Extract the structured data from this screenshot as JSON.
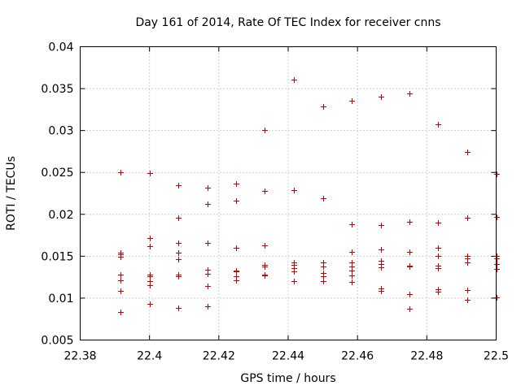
{
  "chart_data": {
    "type": "scatter",
    "title": "Day 161 of 2014, Rate Of TEC Index for receiver cnns",
    "xlabel": "GPS time / hours",
    "ylabel": "ROTI / TECUs",
    "xlim": [
      22.38,
      22.5
    ],
    "ylim": [
      0.005,
      0.04
    ],
    "grid": true,
    "marker": "plus",
    "color": "#cc0000",
    "x_ticks": [
      "22.38",
      "22.4",
      "22.42",
      "22.44",
      "22.46",
      "22.48",
      "22.5"
    ],
    "y_ticks": [
      "0.005",
      "0.01",
      "0.015",
      "0.02",
      "0.025",
      "0.03",
      "0.035",
      "0.04"
    ],
    "series": [
      {
        "name": "ROTI",
        "points": [
          [
            22.3917,
            0.025
          ],
          [
            22.3917,
            0.0154
          ],
          [
            22.3917,
            0.0152
          ],
          [
            22.3917,
            0.0149
          ],
          [
            22.3917,
            0.0128
          ],
          [
            22.3917,
            0.0121
          ],
          [
            22.3917,
            0.0109
          ],
          [
            22.3917,
            0.0083
          ],
          [
            22.4,
            0.0249
          ],
          [
            22.4,
            0.0172
          ],
          [
            22.4,
            0.0162
          ],
          [
            22.4,
            0.0128
          ],
          [
            22.4,
            0.0126
          ],
          [
            22.4,
            0.012
          ],
          [
            22.4,
            0.0115
          ],
          [
            22.4,
            0.0093
          ],
          [
            22.4083,
            0.0235
          ],
          [
            22.4083,
            0.0196
          ],
          [
            22.4083,
            0.0166
          ],
          [
            22.4083,
            0.0154
          ],
          [
            22.4083,
            0.0146
          ],
          [
            22.4083,
            0.0128
          ],
          [
            22.4083,
            0.0126
          ],
          [
            22.4083,
            0.0088
          ],
          [
            22.4167,
            0.0232
          ],
          [
            22.4167,
            0.0212
          ],
          [
            22.4167,
            0.0166
          ],
          [
            22.4167,
            0.0134
          ],
          [
            22.4167,
            0.0129
          ],
          [
            22.4167,
            0.0114
          ],
          [
            22.4167,
            0.009
          ],
          [
            22.425,
            0.0237
          ],
          [
            22.425,
            0.0216
          ],
          [
            22.425,
            0.016
          ],
          [
            22.425,
            0.0133
          ],
          [
            22.425,
            0.0132
          ],
          [
            22.425,
            0.0126
          ],
          [
            22.425,
            0.0121
          ],
          [
            22.4333,
            0.0301
          ],
          [
            22.4333,
            0.0228
          ],
          [
            22.4333,
            0.0163
          ],
          [
            22.4333,
            0.014
          ],
          [
            22.4333,
            0.0138
          ],
          [
            22.4333,
            0.0128
          ],
          [
            22.4333,
            0.0127
          ],
          [
            22.4417,
            0.0361
          ],
          [
            22.4417,
            0.0229
          ],
          [
            22.4417,
            0.0143
          ],
          [
            22.4417,
            0.014
          ],
          [
            22.4417,
            0.0136
          ],
          [
            22.4417,
            0.0132
          ],
          [
            22.4417,
            0.012
          ],
          [
            22.45,
            0.0329
          ],
          [
            22.45,
            0.0219
          ],
          [
            22.45,
            0.0143
          ],
          [
            22.45,
            0.0138
          ],
          [
            22.45,
            0.013
          ],
          [
            22.45,
            0.0126
          ],
          [
            22.45,
            0.012
          ],
          [
            22.4583,
            0.0336
          ],
          [
            22.4583,
            0.0188
          ],
          [
            22.4583,
            0.0155
          ],
          [
            22.4583,
            0.0143
          ],
          [
            22.4583,
            0.0138
          ],
          [
            22.4583,
            0.0133
          ],
          [
            22.4583,
            0.0127
          ],
          [
            22.4583,
            0.0119
          ],
          [
            22.4667,
            0.034
          ],
          [
            22.4667,
            0.0187
          ],
          [
            22.4667,
            0.0158
          ],
          [
            22.4667,
            0.0145
          ],
          [
            22.4667,
            0.0141
          ],
          [
            22.4667,
            0.0137
          ],
          [
            22.4667,
            0.0112
          ],
          [
            22.4667,
            0.0109
          ],
          [
            22.475,
            0.0344
          ],
          [
            22.475,
            0.0191
          ],
          [
            22.475,
            0.0155
          ],
          [
            22.475,
            0.0139
          ],
          [
            22.475,
            0.0138
          ],
          [
            22.475,
            0.0105
          ],
          [
            22.475,
            0.0087
          ],
          [
            22.4833,
            0.0307
          ],
          [
            22.4833,
            0.019
          ],
          [
            22.4833,
            0.016
          ],
          [
            22.4833,
            0.015
          ],
          [
            22.4833,
            0.0139
          ],
          [
            22.4833,
            0.0136
          ],
          [
            22.4833,
            0.0111
          ],
          [
            22.4833,
            0.0108
          ],
          [
            22.4917,
            0.0274
          ],
          [
            22.4917,
            0.0196
          ],
          [
            22.4917,
            0.015
          ],
          [
            22.4917,
            0.0147
          ],
          [
            22.4917,
            0.0143
          ],
          [
            22.4917,
            0.011
          ],
          [
            22.4917,
            0.0098
          ],
          [
            22.5,
            0.0248
          ],
          [
            22.5,
            0.0197
          ],
          [
            22.5,
            0.015
          ],
          [
            22.5,
            0.0147
          ],
          [
            22.5,
            0.0141
          ],
          [
            22.5,
            0.0135
          ],
          [
            22.5,
            0.0101
          ]
        ]
      }
    ]
  }
}
